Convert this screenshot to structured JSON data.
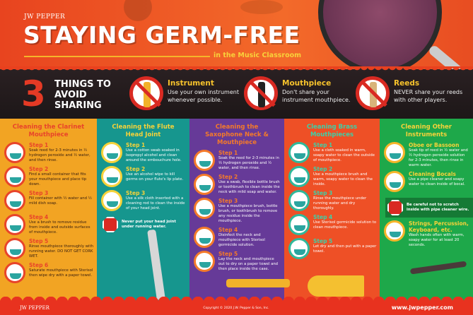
{
  "header": {
    "logo": "JW PEPPER",
    "title": "STAYING GERM-FREE",
    "subtitle": "in the Music Classroom"
  },
  "band": {
    "number": "3",
    "heading": "THINGS TO AVOID SHARING",
    "items": [
      {
        "title": "Instrument",
        "text": "Use your own instrument whenever possible.",
        "icon": "no-trumpet-icon"
      },
      {
        "title": "Mouthpiece",
        "text": "Don't share your instrument mouthpiece.",
        "icon": "no-mouthpiece-icon"
      },
      {
        "title": "Reeds",
        "text": "NEVER share your reeds with other players.",
        "icon": "no-reed-icon"
      }
    ]
  },
  "columns": [
    {
      "title": "Cleaning the Clarinet Mouthpiece",
      "bg": "#f2a423",
      "title_color": "#e8442a",
      "step_color": "#e8442a",
      "text_color": "#3a2010",
      "ring": "#e8442a",
      "steps": [
        {
          "label": "Step 1",
          "text": "Soak reed for 2-3 minutes in ½ hydrogen peroxide and ½ water, and then rinse."
        },
        {
          "label": "Step 2",
          "text": "Find a small container that fits your mouthpiece and place tip down."
        },
        {
          "label": "Step 3",
          "text": "Fill container with ½ water and ½ mild dish soap."
        },
        {
          "label": "Step 4",
          "text": "Use a brush to remove residue from inside and outside surfaces of mouthpiece."
        },
        {
          "label": "Step 5",
          "text": "Rinse mouthpiece thoroughly with running water. DO NOT GET CORK WET."
        },
        {
          "label": "Step 6",
          "text": "Saturate mouthpiece with Sterisol then wipe dry with a paper towel."
        }
      ]
    },
    {
      "title": "Cleaning the Flute Head Joint",
      "bg": "#16968e",
      "title_color": "#f6d23a",
      "step_color": "#f6d23a",
      "text_color": "#ffffff",
      "ring": "#f6d23a",
      "steps": [
        {
          "label": "Step 1",
          "text": "Use a cotton swab soaked in Isopropyl alcohol and clean around the embouchure hole."
        },
        {
          "label": "Step 2",
          "text": "Use an alcohol wipe to kill germs on your flute's lip plate."
        },
        {
          "label": "Step 3",
          "text": "Use a silk cloth inserted with a cleaning rod to clean the inside of your head joint."
        }
      ],
      "warning": "Never put your head joint under running water."
    },
    {
      "title": "Cleaning the Saxophone Neck & Mouthpiece",
      "bg": "#663a98",
      "title_color": "#f47a2a",
      "step_color": "#f47a2a",
      "text_color": "#ffffff",
      "ring": "#f47a2a",
      "steps": [
        {
          "label": "Step 1",
          "text": "Soak the reed for 2-3 minutes in ½ hydrogen peroxide and ½ water, and then rinse."
        },
        {
          "label": "Step 2",
          "text": "Use a swab, flexible bottle brush or toothbrush to clean inside the neck with mild soap and water."
        },
        {
          "label": "Step 3",
          "text": "Use a mouthpiece brush, bottle brush, or toothbrush to remove any residue inside the mouthpiece."
        },
        {
          "label": "Step 4",
          "text": "Disinfect the neck and mouthpiece with Sterisol germicide solution."
        },
        {
          "label": "Step 5",
          "text": "Lay the neck and mouthpiece out to dry on a paper towel and then place inside the case."
        }
      ]
    },
    {
      "title": "Cleaning Brass Mouthpieces",
      "bg": "#ee5026",
      "title_color": "#3dd0a8",
      "step_color": "#3dd0a8",
      "text_color": "#ffffff",
      "ring": "#2fb89a",
      "steps": [
        {
          "label": "Step 1",
          "text": "Use a cloth soaked in warm, soapy water to clean the outside of mouthpiece."
        },
        {
          "label": "Step 2",
          "text": "Use a mouthpiece brush and warm, soapy water to clean the inside."
        },
        {
          "label": "Step 3",
          "text": "Rinse the mouthpiece under running water and dry thoroughly."
        },
        {
          "label": "Step 4",
          "text": "Use Sterisol germicide solution to clean mouthpiece."
        },
        {
          "label": "Step 5",
          "text": "Let dry and then put with a paper towel."
        }
      ]
    },
    {
      "title": "Cleaning Other Instruments",
      "bg": "#1ea84a",
      "title_color": "#f6d23a",
      "step_color": "#f6d23a",
      "text_color": "#ffffff",
      "ring": "#f6b52a",
      "steps": [
        {
          "label": "Oboe or Bassoon",
          "text": "Soak tip of reed in ½ water and ½ hydrogen peroxide solution for 2-3 minutes, then rinse in warm water."
        },
        {
          "label": "Cleaning Bocals",
          "text": "Use a pipe cleaner and soapy water to clean inside of bocal."
        }
      ],
      "warning": "Be careful not to scratch inside with pipe cleaner wire.",
      "extra": {
        "label": "Strings, Percussion, Keyboard, etc.",
        "text": "Wash hands often with warm, soapy water for at least 20 seconds."
      }
    }
  ],
  "footer": {
    "logo": "JW PEPPER",
    "copyright": "Copyright © 2020 J.W. Pepper & Son, Inc.",
    "url": "www.jwpepper.com"
  }
}
